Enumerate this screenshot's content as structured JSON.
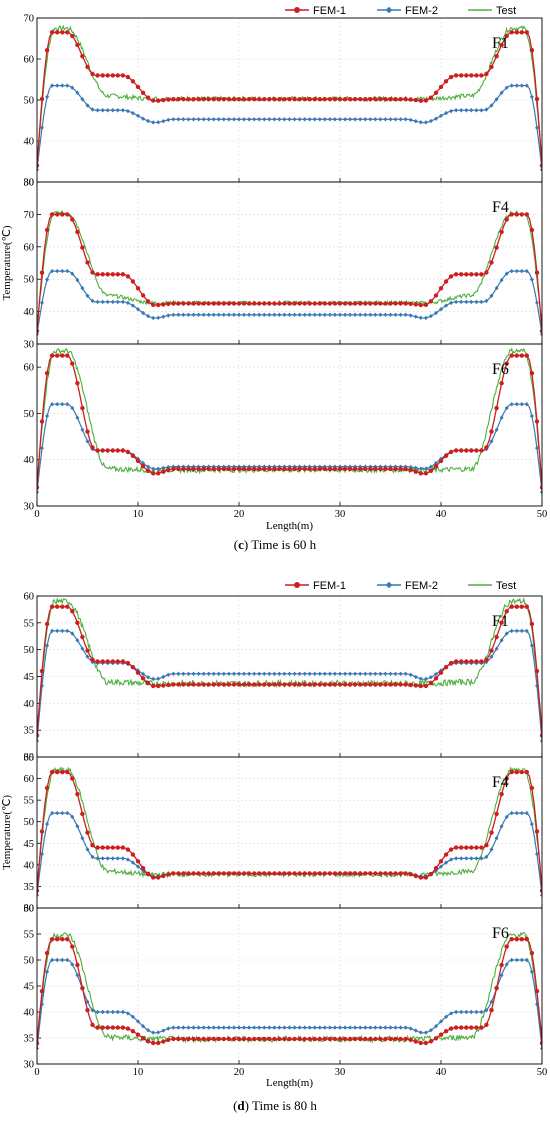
{
  "colors": {
    "fem1": "#cc1f1f",
    "fem2": "#3a78b5",
    "test": "#4caf3c"
  },
  "legend": [
    "FEM-1",
    "FEM-2",
    "Test"
  ],
  "chart_data": [
    {
      "type": "line",
      "caption_letter": "c",
      "caption_text": " Time is 60 h",
      "xlabel": "Length(m)",
      "ylabel": "Temperature(℃)",
      "xlim": [
        0,
        50
      ],
      "xticks": [
        0,
        10,
        20,
        30,
        40,
        50
      ],
      "grid": true,
      "legend_position": "top-right",
      "panels": [
        {
          "label": "F1",
          "ylim": [
            30,
            70
          ],
          "yticks": [
            30,
            40,
            50,
            60,
            70
          ],
          "fem1": {
            "peak": 66.5,
            "plateau": 56,
            "mid": 50.2,
            "dip": 49.8
          },
          "fem2": {
            "peak": 53.5,
            "plateau": 47.5,
            "mid": 45.3,
            "dip": 44.5
          },
          "test": {
            "peak": 67.5,
            "shoulder": 51,
            "mid": 50.3
          }
        },
        {
          "label": "F4",
          "ylim": [
            30,
            80
          ],
          "yticks": [
            30,
            40,
            50,
            60,
            70,
            80
          ],
          "fem1": {
            "peak": 70,
            "plateau": 51.5,
            "mid": 42.5,
            "dip": 42
          },
          "fem2": {
            "peak": 52.5,
            "plateau": 43,
            "mid": 39,
            "dip": 38
          },
          "test": {
            "peak": 70.5,
            "shoulder": 45,
            "mid": 42.7
          }
        },
        {
          "label": "F6",
          "ylim": [
            30,
            65
          ],
          "yticks": [
            30,
            40,
            50,
            60
          ],
          "fem1": {
            "peak": 62.5,
            "plateau": 42,
            "mid": 38,
            "dip": 37
          },
          "fem2": {
            "peak": 52,
            "plateau": 42,
            "mid": 38.5,
            "dip": 38
          },
          "test": {
            "peak": 63.5,
            "shoulder": 38,
            "mid": 37.8
          }
        }
      ]
    },
    {
      "type": "line",
      "caption_letter": "d",
      "caption_text": " Time is 80 h",
      "xlabel": "Length(m)",
      "ylabel": "Temperature(℃)",
      "xlim": [
        0,
        50
      ],
      "xticks": [
        0,
        10,
        20,
        30,
        40,
        50
      ],
      "grid": true,
      "legend_position": "top-right",
      "panels": [
        {
          "label": "F1",
          "ylim": [
            30,
            60
          ],
          "yticks": [
            30,
            35,
            40,
            45,
            50,
            55,
            60
          ],
          "fem1": {
            "peak": 58,
            "plateau": 47.8,
            "mid": 43.5,
            "dip": 43.2
          },
          "fem2": {
            "peak": 53.5,
            "plateau": 47.5,
            "mid": 45.5,
            "dip": 44.5
          },
          "test": {
            "peak": 59,
            "shoulder": 44,
            "mid": 43.7
          }
        },
        {
          "label": "F4",
          "ylim": [
            30,
            65
          ],
          "yticks": [
            30,
            35,
            40,
            45,
            50,
            55,
            60,
            65
          ],
          "fem1": {
            "peak": 61.5,
            "plateau": 44,
            "mid": 38,
            "dip": 37
          },
          "fem2": {
            "peak": 52,
            "plateau": 41.5,
            "mid": 38,
            "dip": 37.3
          },
          "test": {
            "peak": 62,
            "shoulder": 38.5,
            "mid": 37.8
          }
        },
        {
          "label": "F6",
          "ylim": [
            30,
            60
          ],
          "yticks": [
            30,
            35,
            40,
            45,
            50,
            55,
            60
          ],
          "fem1": {
            "peak": 54,
            "plateau": 37,
            "mid": 34.8,
            "dip": 34
          },
          "fem2": {
            "peak": 50,
            "plateau": 40,
            "mid": 37,
            "dip": 36
          },
          "test": {
            "peak": 54.8,
            "shoulder": 35.2,
            "mid": 34.8
          }
        }
      ]
    }
  ]
}
